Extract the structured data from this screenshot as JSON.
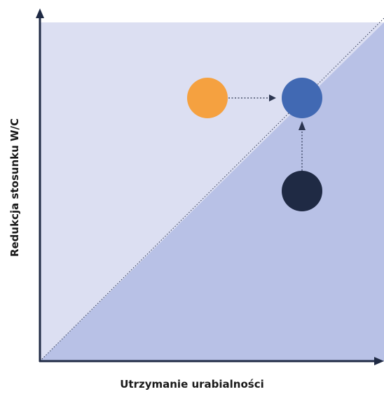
{
  "axes": {
    "x_label": "Utrzymanie urabialności",
    "y_label": "Redukcja stosunku W/C"
  },
  "colors": {
    "upper_region": "#dcdff2",
    "lower_region": "#b8c1e6",
    "axis": "#1f2a44",
    "orange_point": "#f5a140",
    "blue_point": "#4169b3",
    "navy_point": "#1f2a44",
    "arrow": "#2b3550"
  },
  "points": [
    {
      "name": "orange",
      "color_key": "orange_point"
    },
    {
      "name": "blue",
      "color_key": "blue_point"
    },
    {
      "name": "navy",
      "color_key": "navy_point"
    }
  ]
}
